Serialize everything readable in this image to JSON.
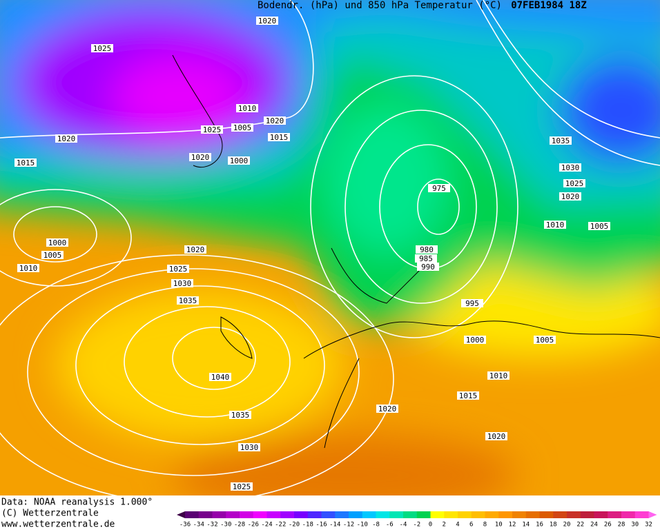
{
  "header": {
    "title": "Bodendr. (hPa) und 850 hPa Temperatur (°C)",
    "date": "07FEB1984 18Z"
  },
  "isobar_labels": [
    "1020",
    "1025",
    "1010",
    "1020",
    "1025",
    "1005",
    "1015",
    "1020",
    "1000",
    "1020",
    "1015",
    "1035",
    "1030",
    "1025",
    "1020",
    "1010",
    "1005",
    "975",
    "980",
    "985",
    "990",
    "995",
    "1000",
    "1005",
    "1010",
    "1015",
    "1020",
    "1020",
    "1020",
    "1025",
    "1030",
    "1035",
    "1040",
    "1035",
    "1030",
    "1025",
    "1000",
    "1005",
    "1010"
  ],
  "footer": [
    "Data: NOAA reanalysis 1.000°",
    "(C) Wetterzentrale",
    "www.wetterzentrale.de"
  ],
  "colorbar": {
    "labels": [
      -36,
      -34,
      -32,
      -30,
      -28,
      -26,
      -24,
      -22,
      -20,
      -18,
      -16,
      -14,
      -12,
      -10,
      -8,
      -6,
      -4,
      -2,
      0,
      2,
      4,
      6,
      8,
      10,
      12,
      14,
      16,
      18,
      20,
      22,
      24,
      26,
      28,
      30,
      32
    ],
    "colors": [
      "#3c0046",
      "#5a0073",
      "#78008c",
      "#9600aa",
      "#b400c8",
      "#d200e6",
      "#f000ff",
      "#c800ff",
      "#a000ff",
      "#7800ff",
      "#5028ff",
      "#3250ff",
      "#1e78ff",
      "#00a0ff",
      "#00c8ff",
      "#00e6e6",
      "#00e6b4",
      "#00dc82",
      "#00d250",
      "#ffff00",
      "#ffe600",
      "#ffd200",
      "#ffbe00",
      "#ffaa00",
      "#ff9600",
      "#f08200",
      "#e66e00",
      "#dc5a00",
      "#d24614",
      "#c83228",
      "#be1e3c",
      "#c8145a",
      "#dc1e82",
      "#f028aa",
      "#ff3cd2",
      "#ff64f0"
    ]
  }
}
